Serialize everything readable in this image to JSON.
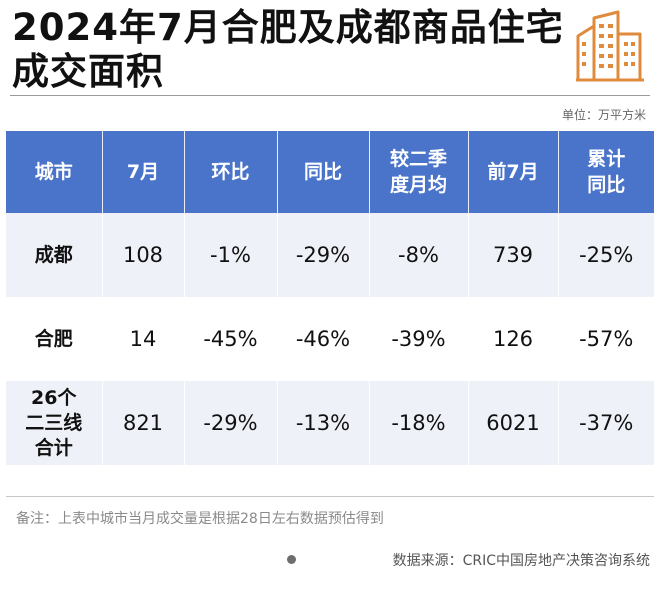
{
  "header": {
    "title_line1": "2024年7月合肥及成都商品住宅",
    "title_line2": "成交面积",
    "logo_icon": "city-buildings-icon",
    "accent_color": "#e08a3c"
  },
  "unit": "单位：万平方米",
  "table": {
    "header_color": "#4a74c9",
    "columns": [
      {
        "line1": "城市",
        "line2": ""
      },
      {
        "line1": "7月",
        "line2": ""
      },
      {
        "line1": "环比",
        "line2": ""
      },
      {
        "line1": "同比",
        "line2": ""
      },
      {
        "line1": "较二季",
        "line2": "度月均"
      },
      {
        "line1": "前7月",
        "line2": ""
      },
      {
        "line1": "累计",
        "line2": "同比"
      }
    ],
    "rows": [
      {
        "city_line1": "成都",
        "city_line2": "",
        "city_line3": "",
        "values": [
          "108",
          "-1%",
          "-29%",
          "-8%",
          "739",
          "-25%"
        ]
      },
      {
        "city_line1": "合肥",
        "city_line2": "",
        "city_line3": "",
        "values": [
          "14",
          "-45%",
          "-46%",
          "-39%",
          "126",
          "-57%"
        ]
      },
      {
        "city_line1": "26个",
        "city_line2": "二三线",
        "city_line3": "合计",
        "values": [
          "821",
          "-29%",
          "-13%",
          "-18%",
          "6021",
          "-37%"
        ]
      }
    ]
  },
  "footer": {
    "note": "备注：上表中城市当月成交量是根据28日左右数据预估得到",
    "source": "数据来源：CRIC中国房地产决策咨询系统"
  }
}
